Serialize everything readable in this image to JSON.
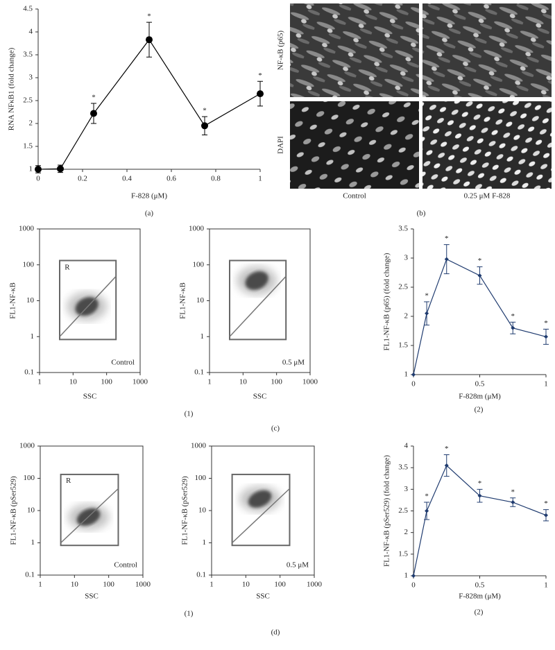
{
  "chart_data": [
    {
      "type": "line",
      "caption": "(a)",
      "xlabel": "F-828 (μM)",
      "ylabel": "RNA NFκB1 (fold change)",
      "x": [
        0,
        0.1,
        0.25,
        0.5,
        0.75,
        1
      ],
      "values": [
        1,
        1.01,
        2.22,
        3.83,
        1.95,
        2.65
      ],
      "errors": [
        0.08,
        0.08,
        0.22,
        0.38,
        0.2,
        0.27
      ],
      "significance": [
        null,
        null,
        "*",
        "*",
        "*",
        "*"
      ],
      "color": "#000000",
      "marker": "circle",
      "xlim": [
        0,
        1
      ],
      "xticks": [
        0,
        0.2,
        0.4,
        0.6,
        0.8,
        1
      ],
      "ylim": [
        1,
        4.5
      ],
      "yticks": [
        1,
        1.5,
        2,
        2.5,
        3,
        3.5,
        4,
        4.5
      ]
    },
    {
      "type": "image",
      "caption": "(b)",
      "row_labels": [
        "NF-κB (p65)",
        "DAPI"
      ],
      "column_labels": [
        "Control",
        "0.25 μM F-828"
      ]
    },
    {
      "type": "flow",
      "xlabel": "SSC",
      "ylabel": "FL1-NF-κB",
      "gate_label": "R",
      "annotation": "Control",
      "log_scale": true,
      "xlim": [
        1,
        1000
      ],
      "xticks": [
        1,
        10,
        100,
        1000
      ],
      "ylim": [
        0.1,
        1000
      ],
      "yticks": [
        0.1,
        1,
        10,
        100,
        1000
      ]
    },
    {
      "type": "flow",
      "caption": "(1)",
      "xlabel": "SSC",
      "ylabel": "FL1-NF-κB",
      "annotation": "0.5 μM",
      "log_scale": true,
      "xlim": [
        1,
        1000
      ],
      "xticks": [
        1,
        10,
        100,
        1000
      ],
      "ylim": [
        0.1,
        1000
      ],
      "yticks": [
        0.1,
        1,
        10,
        100,
        1000
      ]
    },
    {
      "type": "line",
      "caption": "(2)",
      "xlabel": "F-828m (μM)",
      "ylabel": "FL1-NF-κB (p65) (fold change)",
      "x": [
        0,
        0.1,
        0.25,
        0.5,
        0.75,
        1
      ],
      "values": [
        1,
        2.05,
        2.98,
        2.7,
        1.8,
        1.65
      ],
      "errors": [
        null,
        0.2,
        0.25,
        0.15,
        0.1,
        0.13
      ],
      "significance": [
        null,
        "*",
        "*",
        "*",
        "*",
        "*"
      ],
      "color": "#1f3b6f",
      "marker": "diamond",
      "xlim": [
        0,
        1
      ],
      "xticks": [
        0,
        0.5,
        1
      ],
      "ylim": [
        1,
        3.5
      ],
      "yticks": [
        1,
        1.5,
        2,
        2.5,
        3,
        3.5
      ]
    },
    {
      "type": "flow",
      "xlabel": "SSC",
      "ylabel": "FL1-NF-κB (pSer529)",
      "gate_label": "R",
      "annotation": "Control",
      "log_scale": true,
      "xlim": [
        1,
        1000
      ],
      "xticks": [
        1,
        10,
        100,
        1000
      ],
      "ylim": [
        0.1,
        1000
      ],
      "yticks": [
        0.1,
        1,
        10,
        100,
        1000
      ]
    },
    {
      "type": "flow",
      "caption": "(1)",
      "xlabel": "SSC",
      "ylabel": "FL1-NF-κB (pSer529)",
      "annotation": "0.5 μM",
      "log_scale": true,
      "xlim": [
        1,
        1000
      ],
      "xticks": [
        1,
        10,
        100,
        1000
      ],
      "ylim": [
        0.1,
        1000
      ],
      "yticks": [
        0.1,
        1,
        10,
        100,
        1000
      ]
    },
    {
      "type": "line",
      "caption": "(2)",
      "xlabel": "F-828m (μM)",
      "ylabel": "FL1-NF-κB (pSer529) (fold change)",
      "x": [
        0,
        0.1,
        0.25,
        0.5,
        0.75,
        1
      ],
      "values": [
        1,
        2.5,
        3.55,
        2.85,
        2.7,
        2.4
      ],
      "errors": [
        null,
        0.2,
        0.25,
        0.15,
        0.1,
        0.13
      ],
      "significance": [
        null,
        "*",
        "*",
        "*",
        "*",
        "*"
      ],
      "color": "#1f3b6f",
      "marker": "diamond",
      "xlim": [
        0,
        1
      ],
      "xticks": [
        0,
        0.5,
        1
      ],
      "ylim": [
        1,
        4
      ],
      "yticks": [
        1,
        1.5,
        2,
        2.5,
        3,
        3.5,
        4
      ]
    }
  ],
  "group_labels": [
    "(c)",
    "(d)"
  ]
}
